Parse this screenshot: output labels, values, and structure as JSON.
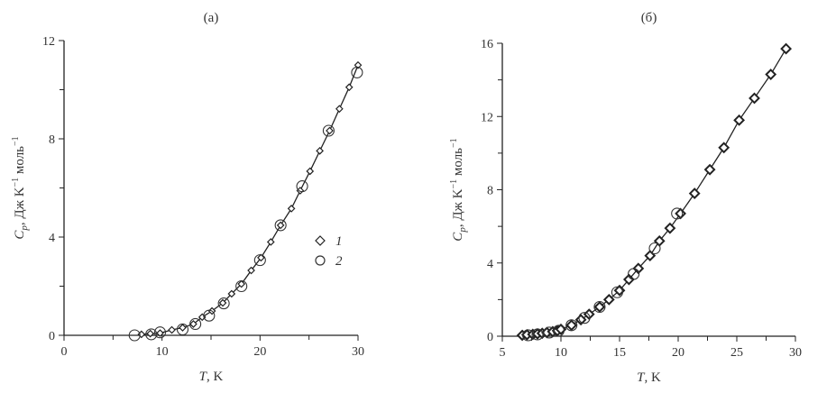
{
  "chart_data": [
    {
      "type": "scatter",
      "title": "(а)",
      "xlabel_var": "T",
      "xlabel_unit": ", K",
      "ylabel_var": "C",
      "ylabel_sub": "p",
      "ylabel_unit": ", Дж K",
      "ylabel_unit2": " моль",
      "ylabel_exp": "−1",
      "xlim": [
        0,
        30
      ],
      "ylim": [
        0,
        12
      ],
      "xticks": [
        0,
        10,
        20,
        30
      ],
      "xminor": [
        5,
        15,
        25
      ],
      "yticks": [
        0,
        4,
        8,
        12
      ],
      "yminor": [
        2,
        6,
        10
      ],
      "legend": {
        "position": "center-right",
        "entries": [
          "1",
          "2"
        ]
      },
      "series": [
        {
          "name": "1",
          "marker": "diamond",
          "x": [
            7.9,
            8.8,
            9.8,
            11,
            12.1,
            13.2,
            14.1,
            15.1,
            16.2,
            17.1,
            18.1,
            19.1,
            20.1,
            21.1,
            22.1,
            23.2,
            24.1,
            25.1,
            26.1,
            27.1,
            28.1,
            29.1,
            30
          ],
          "y": [
            0.04,
            0.07,
            0.09,
            0.22,
            0.31,
            0.46,
            0.74,
            0.99,
            1.32,
            1.69,
            2.09,
            2.64,
            3.16,
            3.8,
            4.48,
            5.16,
            5.89,
            6.68,
            7.51,
            8.33,
            9.22,
            10.1,
            11.0
          ]
        },
        {
          "name": "2",
          "marker": "circle",
          "x": [
            7.2,
            8.9,
            9.8,
            12.1,
            13.4,
            14.8,
            16.3,
            18.1,
            20,
            22.1,
            24.3,
            27,
            29.9
          ],
          "y": [
            0.0,
            0.04,
            0.12,
            0.24,
            0.46,
            0.8,
            1.3,
            2.0,
            3.06,
            4.48,
            6.07,
            8.33,
            10.7
          ]
        }
      ]
    },
    {
      "type": "scatter",
      "title": "(б)",
      "xlabel_var": "T",
      "xlabel_unit": ", K",
      "ylabel_var": "C",
      "ylabel_sub": "p",
      "ylabel_unit": ", Дж K",
      "ylabel_unit2": " моль",
      "ylabel_exp": "−1",
      "xlim": [
        5,
        30
      ],
      "ylim": [
        0,
        16
      ],
      "xticks": [
        5,
        10,
        15,
        20,
        25,
        30
      ],
      "xminor": [
        7.5,
        12.5,
        17.5,
        22.5,
        27.5
      ],
      "yticks": [
        0,
        4,
        8,
        12,
        16
      ],
      "yminor": [
        2,
        6,
        10,
        14
      ],
      "series": [
        {
          "name": "1",
          "marker": "diamond",
          "x": [
            6.7,
            7.1,
            7.6,
            8.0,
            8.4,
            8.8,
            9.3,
            9.7,
            10.0,
            10.9,
            11.7,
            12.4,
            13.3,
            14.1,
            15.0,
            15.8,
            16.6,
            17.6,
            18.4,
            19.3,
            20.2,
            21.4,
            22.7,
            23.9,
            25.2,
            26.5,
            27.9,
            29.2
          ],
          "y": [
            0.05,
            0.08,
            0.1,
            0.13,
            0.16,
            0.2,
            0.25,
            0.3,
            0.38,
            0.6,
            0.9,
            1.2,
            1.6,
            2.0,
            2.5,
            3.1,
            3.7,
            4.4,
            5.2,
            5.9,
            6.7,
            7.8,
            9.1,
            10.3,
            11.8,
            13.0,
            14.3,
            15.7
          ]
        },
        {
          "name": "2",
          "marker": "circle",
          "x": [
            7.2,
            8.0,
            9.0,
            9.8,
            10.9,
            12.0,
            13.3,
            14.8,
            16.2,
            18.0,
            19.9
          ],
          "y": [
            0.05,
            0.1,
            0.2,
            0.3,
            0.6,
            1.0,
            1.6,
            2.4,
            3.4,
            4.8,
            6.7
          ]
        }
      ]
    }
  ]
}
